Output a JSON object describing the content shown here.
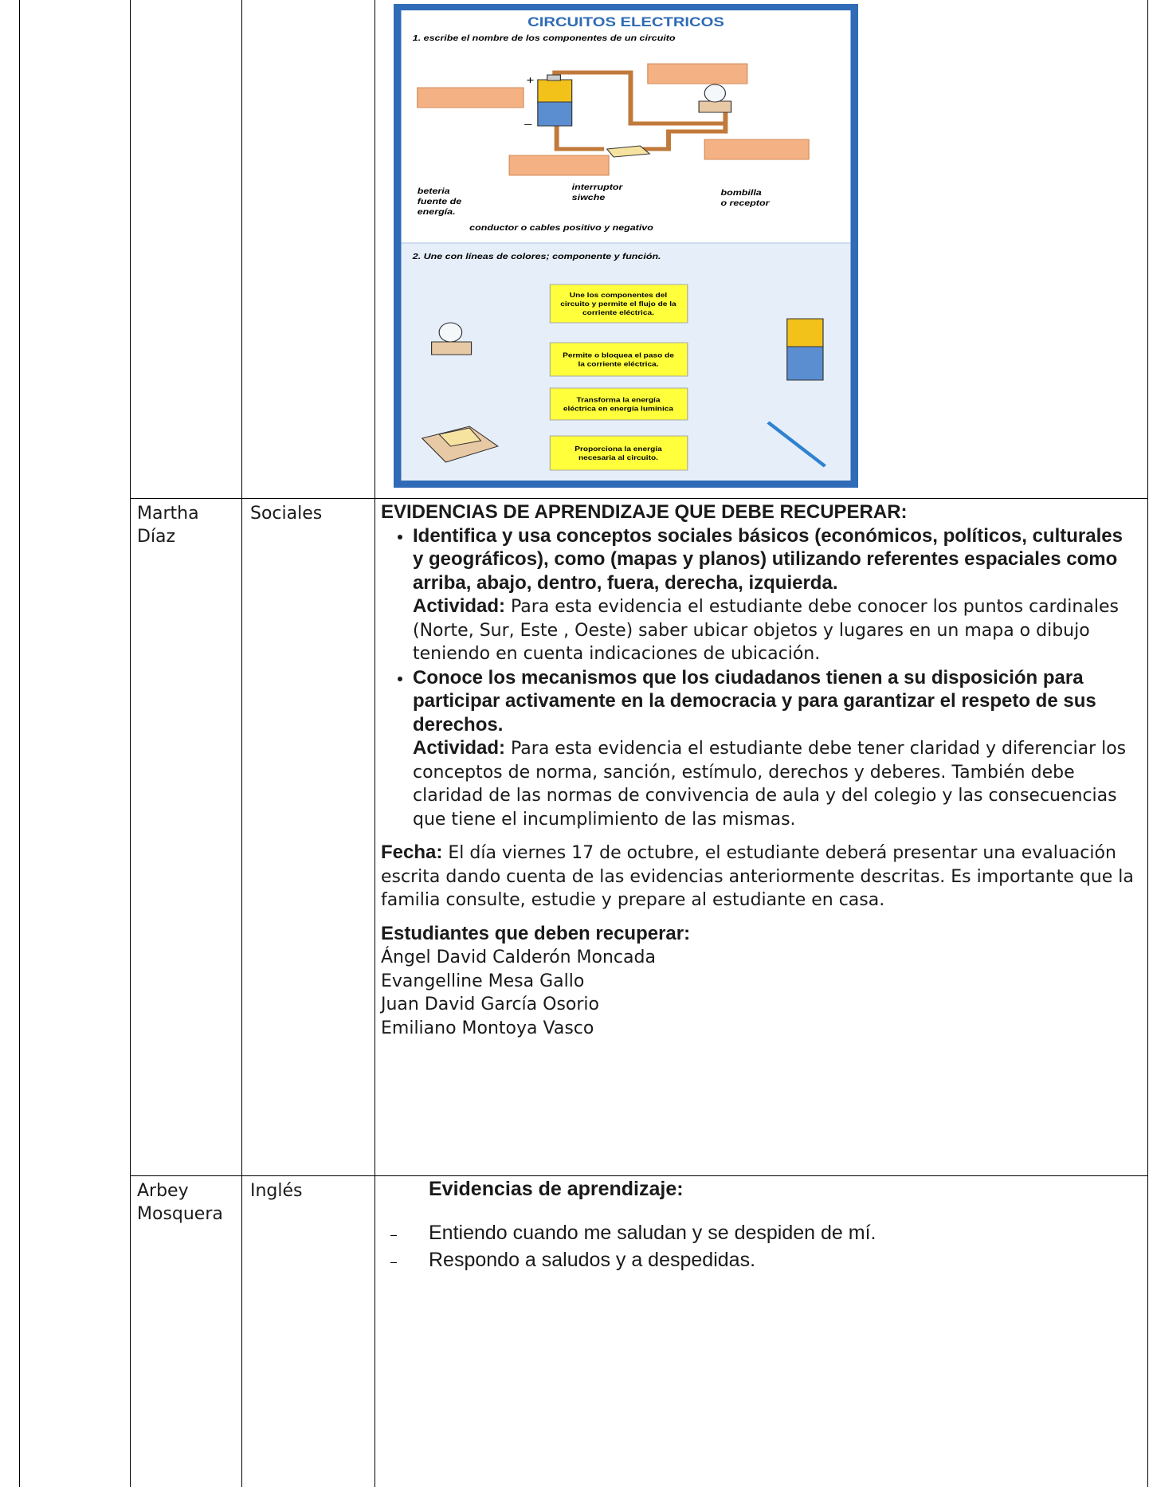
{
  "worksheet": {
    "title": "CIRCUITOS ELECTRICOS",
    "q1": "1. escribe el nombre de los componentes de un circuito",
    "plus": "+",
    "minus": "–",
    "labels": [
      [
        "beteria",
        "fuente de",
        "energía."
      ],
      [
        "interruptor",
        "siwche"
      ],
      [
        "bombilla",
        "o receptor"
      ],
      [
        "conductor o cables positivo y negativo"
      ]
    ],
    "q2": "2. Une con líneas de colores; componente y función.",
    "boxes": [
      [
        "Une los componentes del",
        "circuito y permite el flujo de la",
        "corriente eléctrica."
      ],
      [
        "Permite o bloquea el paso de",
        "la corriente eléctrica."
      ],
      [
        "Transforma la energía",
        "eléctrica en energía lumínica"
      ],
      [
        "Proporciona la  energía",
        "necesaria al circuito."
      ]
    ]
  },
  "table": {
    "rows": [
      {
        "teacher": "Martha Díaz",
        "subject": "Sociales",
        "heading": "EVIDENCIAS DE APRENDIZAJE QUE DEBE RECUPERAR:",
        "items": [
          {
            "title": "Identifica y usa conceptos sociales básicos (económicos, políticos, culturales y geográficos), como (mapas y planos) utilizando referentes espaciales como arriba, abajo, dentro, fuera, derecha, izquierda.",
            "label": "Actividad:",
            "text": "Para esta evidencia el estudiante debe conocer los puntos cardinales (Norte, Sur, Este , Oeste) saber ubicar objetos y lugares en un mapa o dibujo teniendo en cuenta indicaciones de ubicación."
          },
          {
            "title": "Conoce los mecanismos que los ciudadanos tienen a su disposición para participar activamente en la democracia y para garantizar el respeto de sus derechos.",
            "label": "Actividad:",
            "text": "Para esta evidencia el estudiante debe tener claridad y diferenciar los conceptos de norma, sanción, estímulo, derechos y deberes. También debe claridad de las normas de convivencia de aula y del colegio y las consecuencias que tiene el incumplimiento de las mismas."
          }
        ],
        "date_label": "Fecha:",
        "date_text": "El día viernes 17 de octubre, el estudiante deberá presentar una evaluación escrita dando cuenta de las evidencias anteriormente descritas. Es importante que la familia consulte, estudie y prepare al estudiante en casa.",
        "students_heading": "Estudiantes que deben recuperar:",
        "students": [
          "Ángel David  Calderón Moncada",
          "Evangelline Mesa Gallo",
          "Juan David  García Osorio",
          "Emiliano Montoya Vasco"
        ]
      },
      {
        "teacher": "Arbey Mosquera",
        "subject": "Inglés",
        "heading": "Evidencias de aprendizaje:",
        "items": [
          "Entiendo cuando me saludan y se despiden de mí.",
          "Respondo a saludos y a despedidas."
        ]
      }
    ]
  }
}
